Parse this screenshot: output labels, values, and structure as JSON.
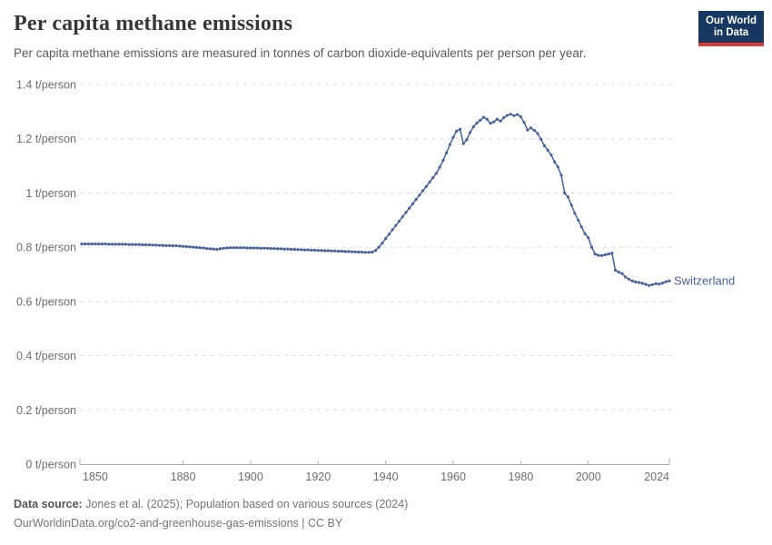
{
  "header": {
    "title": "Per capita methane emissions",
    "subtitle": "Per capita methane emissions are measured in tonnes of carbon dioxide-equivalents per person per year."
  },
  "logo": {
    "line1": "Our World",
    "line2": "in Data"
  },
  "colors": {
    "line": "#47629e",
    "logo_bg": "#153760",
    "logo_bar": "#dc3a34",
    "grid": "#dcdcdc",
    "axis": "#a9a9a9",
    "tick_text": "#6d6d6d",
    "title_text": "#373737",
    "subtitle_text": "#5b5b5b"
  },
  "chart_data": {
    "type": "line",
    "title": "Per capita methane emissions",
    "unit": "t/person",
    "xlabel": "",
    "ylabel": "t/person",
    "xlim": [
      1850,
      2024
    ],
    "ylim": [
      0,
      1.4
    ],
    "grid": "horizontal-dashed",
    "legend_position": "end-of-line-label",
    "xticks": [
      {
        "value": 1850,
        "label": "1850"
      },
      {
        "value": 1880,
        "label": "1880"
      },
      {
        "value": 1900,
        "label": "1900"
      },
      {
        "value": 1920,
        "label": "1920"
      },
      {
        "value": 1940,
        "label": "1940"
      },
      {
        "value": 1960,
        "label": "1960"
      },
      {
        "value": 1980,
        "label": "1980"
      },
      {
        "value": 2000,
        "label": "2000"
      },
      {
        "value": 2024,
        "label": "2024"
      }
    ],
    "yticks": [
      {
        "value": 0,
        "label": "0 t/person"
      },
      {
        "value": 0.2,
        "label": "0.2 t/person"
      },
      {
        "value": 0.4,
        "label": "0.4 t/person"
      },
      {
        "value": 0.6,
        "label": "0.6 t/person"
      },
      {
        "value": 0.8,
        "label": "0.8 t/person"
      },
      {
        "value": 1,
        "label": "1 t/person"
      },
      {
        "value": 1.2,
        "label": "1.2 t/person"
      },
      {
        "value": 1.4,
        "label": "1.4 t/person"
      }
    ],
    "series": [
      {
        "name": "Switzerland",
        "color": "#47629e",
        "marker": "dot",
        "years": [
          1850,
          1851,
          1852,
          1853,
          1854,
          1855,
          1856,
          1857,
          1858,
          1859,
          1860,
          1861,
          1862,
          1863,
          1864,
          1865,
          1866,
          1867,
          1868,
          1869,
          1870,
          1871,
          1872,
          1873,
          1874,
          1875,
          1876,
          1877,
          1878,
          1879,
          1880,
          1881,
          1882,
          1883,
          1884,
          1885,
          1886,
          1887,
          1888,
          1889,
          1890,
          1891,
          1892,
          1893,
          1894,
          1895,
          1896,
          1897,
          1898,
          1899,
          1900,
          1901,
          1902,
          1903,
          1904,
          1905,
          1906,
          1907,
          1908,
          1909,
          1910,
          1911,
          1912,
          1913,
          1914,
          1915,
          1916,
          1917,
          1918,
          1919,
          1920,
          1921,
          1922,
          1923,
          1924,
          1925,
          1926,
          1927,
          1928,
          1929,
          1930,
          1931,
          1932,
          1933,
          1934,
          1935,
          1936,
          1937,
          1938,
          1939,
          1940,
          1941,
          1942,
          1943,
          1944,
          1945,
          1946,
          1947,
          1948,
          1949,
          1950,
          1951,
          1952,
          1953,
          1954,
          1955,
          1956,
          1957,
          1958,
          1959,
          1960,
          1961,
          1962,
          1963,
          1964,
          1965,
          1966,
          1967,
          1968,
          1969,
          1970,
          1971,
          1972,
          1973,
          1974,
          1975,
          1976,
          1977,
          1978,
          1979,
          1980,
          1981,
          1982,
          1983,
          1984,
          1985,
          1986,
          1987,
          1988,
          1989,
          1990,
          1991,
          1992,
          1993,
          1994,
          1995,
          1996,
          1997,
          1998,
          1999,
          2000,
          2001,
          2002,
          2003,
          2004,
          2005,
          2006,
          2007,
          2008,
          2009,
          2010,
          2011,
          2012,
          2013,
          2014,
          2015,
          2016,
          2017,
          2018,
          2019,
          2020,
          2021,
          2022,
          2023,
          2024
        ],
        "values": [
          0.812,
          0.812,
          0.812,
          0.812,
          0.812,
          0.812,
          0.812,
          0.812,
          0.811,
          0.811,
          0.811,
          0.811,
          0.811,
          0.811,
          0.81,
          0.81,
          0.81,
          0.81,
          0.809,
          0.809,
          0.809,
          0.808,
          0.808,
          0.807,
          0.807,
          0.806,
          0.806,
          0.805,
          0.805,
          0.804,
          0.803,
          0.802,
          0.801,
          0.8,
          0.799,
          0.798,
          0.797,
          0.795,
          0.794,
          0.793,
          0.792,
          0.794,
          0.796,
          0.797,
          0.798,
          0.798,
          0.798,
          0.798,
          0.798,
          0.797,
          0.797,
          0.797,
          0.797,
          0.796,
          0.796,
          0.796,
          0.795,
          0.795,
          0.794,
          0.794,
          0.793,
          0.793,
          0.792,
          0.792,
          0.791,
          0.791,
          0.79,
          0.79,
          0.789,
          0.789,
          0.788,
          0.788,
          0.787,
          0.787,
          0.786,
          0.786,
          0.785,
          0.785,
          0.784,
          0.784,
          0.783,
          0.783,
          0.782,
          0.782,
          0.781,
          0.781,
          0.782,
          0.788,
          0.8,
          0.815,
          0.832,
          0.848,
          0.864,
          0.88,
          0.896,
          0.912,
          0.928,
          0.944,
          0.96,
          0.976,
          0.992,
          1.008,
          1.024,
          1.04,
          1.056,
          1.072,
          1.095,
          1.12,
          1.148,
          1.178,
          1.205,
          1.228,
          1.235,
          1.182,
          1.196,
          1.223,
          1.244,
          1.258,
          1.268,
          1.279,
          1.272,
          1.257,
          1.262,
          1.272,
          1.265,
          1.278,
          1.286,
          1.29,
          1.285,
          1.289,
          1.281,
          1.26,
          1.232,
          1.24,
          1.231,
          1.219,
          1.198,
          1.174,
          1.158,
          1.14,
          1.115,
          1.096,
          1.065,
          1.0,
          0.985,
          0.955,
          0.925,
          0.9,
          0.875,
          0.85,
          0.835,
          0.8,
          0.775,
          0.77,
          0.769,
          0.772,
          0.775,
          0.778,
          0.715,
          0.708,
          0.703,
          0.69,
          0.682,
          0.676,
          0.672,
          0.67,
          0.667,
          0.663,
          0.659,
          0.662,
          0.665,
          0.664,
          0.668,
          0.673,
          0.676
        ]
      }
    ]
  },
  "footer": {
    "source_label": "Data source:",
    "source_text": "Jones et al. (2025); Population based on various sources (2024)",
    "url": "OurWorldinData.org/co2-and-greenhouse-gas-emissions",
    "separator": "|",
    "license": "CC BY"
  }
}
